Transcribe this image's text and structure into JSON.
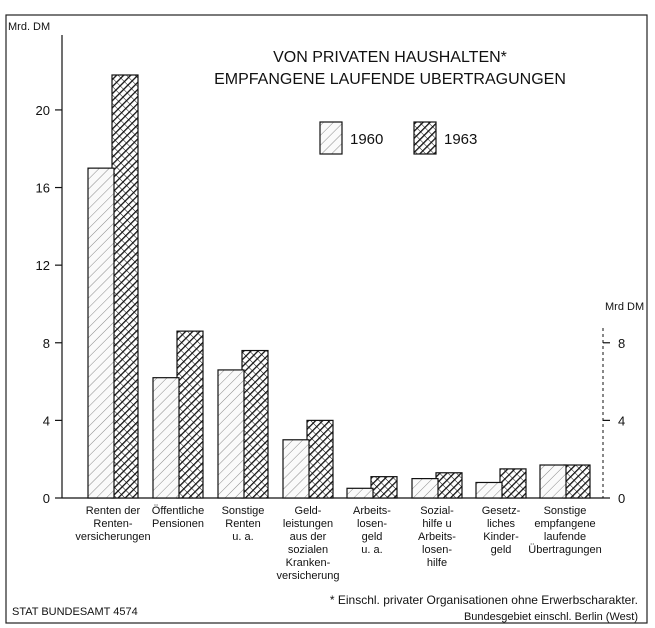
{
  "chart_data": {
    "type": "bar",
    "title_lines": [
      "VON PRIVATEN HAUSHALTEN*",
      "EMPFANGENE LAUFENDE UBERTRAGUNGEN"
    ],
    "ylabel_left": "Mrd. DM",
    "ylabel_right": "Mrd DM",
    "ylim": [
      0,
      22
    ],
    "yticks_left": [
      0,
      4,
      8,
      12,
      16,
      20
    ],
    "yticks_right": [
      0,
      4,
      8
    ],
    "categories": [
      [
        "Renten der",
        "Renten-",
        "versicherungen"
      ],
      [
        "Öffentliche",
        "Pensionen"
      ],
      [
        "Sonstige",
        "Renten",
        "u. a."
      ],
      [
        "Geld-",
        "leistungen",
        "aus der",
        "sozialen",
        "Kranken-",
        "versicherung"
      ],
      [
        "Arbeits-",
        "losen-",
        "geld",
        "u. a."
      ],
      [
        "Sozial-",
        "hilfe u",
        "Arbeits-",
        "losen-",
        "hilfe"
      ],
      [
        "Gesetz-",
        "liches",
        "Kinder-",
        "geld"
      ],
      [
        "Sonstige",
        "empfangene",
        "laufende",
        "Übertragungen"
      ]
    ],
    "series": [
      {
        "name": "1960",
        "values": [
          17.0,
          6.2,
          6.6,
          3.0,
          0.5,
          1.0,
          0.8,
          1.7
        ]
      },
      {
        "name": "1963",
        "values": [
          21.8,
          8.6,
          7.6,
          4.0,
          1.1,
          1.3,
          1.5,
          1.7
        ]
      }
    ],
    "legend_position": "top-right",
    "footnote": "* Einschl. privater Organisationen ohne Erwerbscharakter.",
    "region_note": "Bundesgebiet einschl. Berlin (West)",
    "source": "STAT BUNDESAMT 4574"
  }
}
